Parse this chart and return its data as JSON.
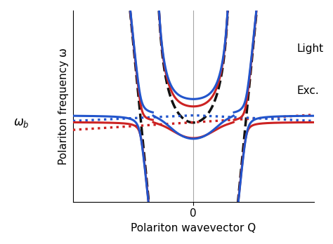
{
  "xlabel": "Polariton wavevector Q",
  "ylabel": "Polariton frequency ω",
  "omega_b_label": "$\\omega_b$",
  "light_label": "Light",
  "exc_label": "Exc.",
  "omega_b": 1.0,
  "omega_exc_red": 1.005,
  "omega_exc_blue": 1.06,
  "coupling_red": 0.13,
  "coupling_blue": 0.16,
  "Q0": 0.52,
  "c_outer": 6.5,
  "exciton_slope_red": 0.04,
  "exciton_slope_blue": 0.1,
  "color_red": "#cc2222",
  "color_blue": "#2255cc",
  "color_light": "#111111",
  "lw_main": 2.2,
  "lw_light": 2.5,
  "lw_dot": 2.4,
  "ylim_lo": 0.35,
  "ylim_hi": 1.92,
  "xlim_lo": -1.55,
  "xlim_hi": 1.55,
  "figsize": [
    4.74,
    3.48
  ],
  "dpi": 100
}
